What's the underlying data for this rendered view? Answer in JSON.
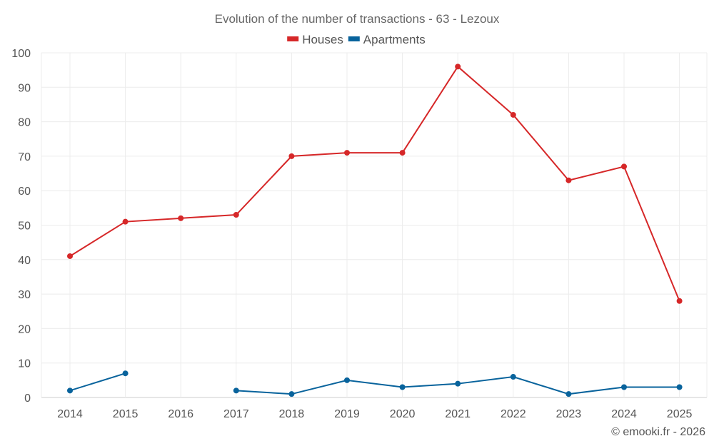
{
  "chart_data": {
    "type": "line",
    "title": "Evolution of the number of transactions - 63 - Lezoux",
    "categories": [
      "2014",
      "2015",
      "2016",
      "2017",
      "2018",
      "2019",
      "2020",
      "2021",
      "2022",
      "2023",
      "2024",
      "2025"
    ],
    "ylim": [
      0,
      100
    ],
    "yticks": [
      0,
      10,
      20,
      30,
      40,
      50,
      60,
      70,
      80,
      90,
      100
    ],
    "grid": true,
    "legend_position": "top-center",
    "series": [
      {
        "name": "Houses",
        "color": "#d62728",
        "values": [
          41,
          51,
          52,
          53,
          70,
          71,
          71,
          96,
          82,
          63,
          67,
          28
        ]
      },
      {
        "name": "Apartments",
        "color": "#08639c",
        "values": [
          2,
          7,
          null,
          2,
          1,
          5,
          3,
          4,
          6,
          1,
          3,
          3
        ]
      }
    ]
  },
  "credit": "© emooki.fr - 2026"
}
